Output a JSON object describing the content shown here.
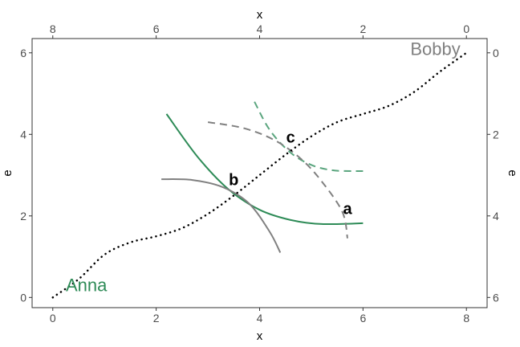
{
  "chart_data": {
    "type": "line",
    "title": "",
    "xlabel_bottom": "x",
    "ylabel_left": "e",
    "xlabel_top": "x",
    "ylabel_right": "e",
    "xlim": [
      -0.4,
      8.4
    ],
    "ylim": [
      -0.25,
      6.35
    ],
    "x_ticks": [
      0,
      2,
      4,
      6,
      8
    ],
    "y_ticks": [
      0,
      2,
      4,
      6
    ],
    "top_ticks": [
      8,
      6,
      4,
      2,
      0
    ],
    "right_ticks": [
      0,
      2,
      4,
      6
    ],
    "grid": false,
    "legend": "none",
    "colors": {
      "anna": "#2e8b57",
      "bobby": "#808080",
      "diagonal": "#000000"
    },
    "curves": [
      {
        "id": "anna-solid",
        "color": "#2e8b57",
        "dash": "solid",
        "x": [
          2.2,
          2.8,
          3.4,
          4.0,
          4.6,
          5.2,
          6.0
        ],
        "y": [
          4.5,
          3.45,
          2.65,
          2.15,
          1.9,
          1.8,
          1.82
        ]
      },
      {
        "id": "bobby-solid",
        "color": "#808080",
        "dash": "solid",
        "x": [
          2.1,
          2.7,
          3.3,
          3.8,
          4.2,
          4.4
        ],
        "y": [
          2.9,
          2.88,
          2.7,
          2.3,
          1.6,
          1.1
        ]
      },
      {
        "id": "anna-dashed",
        "color": "#5aa57e",
        "dash": "dashed",
        "x": [
          3.9,
          4.2,
          4.6,
          5.0,
          5.4,
          5.8,
          6.0
        ],
        "y": [
          4.8,
          4.1,
          3.55,
          3.25,
          3.12,
          3.1,
          3.1
        ]
      },
      {
        "id": "bobby-dashed",
        "color": "#808080",
        "dash": "dashed",
        "x": [
          3.0,
          3.7,
          4.3,
          4.8,
          5.2,
          5.6,
          5.7
        ],
        "y": [
          4.3,
          4.15,
          3.85,
          3.4,
          2.85,
          2.1,
          1.45
        ]
      },
      {
        "id": "diagonal-dotted",
        "color": "#000000",
        "dash": "dotted",
        "x": [
          0,
          0.5,
          1,
          1.5,
          2,
          2.5,
          3,
          3.5,
          4,
          4.5,
          5,
          5.5,
          6,
          6.5,
          7,
          7.5,
          8
        ],
        "y": [
          0,
          0.45,
          1.05,
          1.35,
          1.5,
          1.7,
          2.05,
          2.5,
          3.0,
          3.5,
          3.95,
          4.3,
          4.5,
          4.7,
          5.05,
          5.55,
          6.0
        ]
      }
    ],
    "point_labels": [
      {
        "text": "a",
        "x": 5.7,
        "y": 2.05
      },
      {
        "text": "b",
        "x": 3.5,
        "y": 2.75
      },
      {
        "text": "c",
        "x": 4.6,
        "y": 3.8
      }
    ],
    "name_labels": [
      {
        "text": "Anna",
        "x": 0.65,
        "y": 0.15,
        "color": "#2e8b57",
        "anchor": "middle"
      },
      {
        "text": "Bobby",
        "x": 7.4,
        "y": 5.95,
        "color": "#808080",
        "anchor": "middle"
      }
    ]
  }
}
